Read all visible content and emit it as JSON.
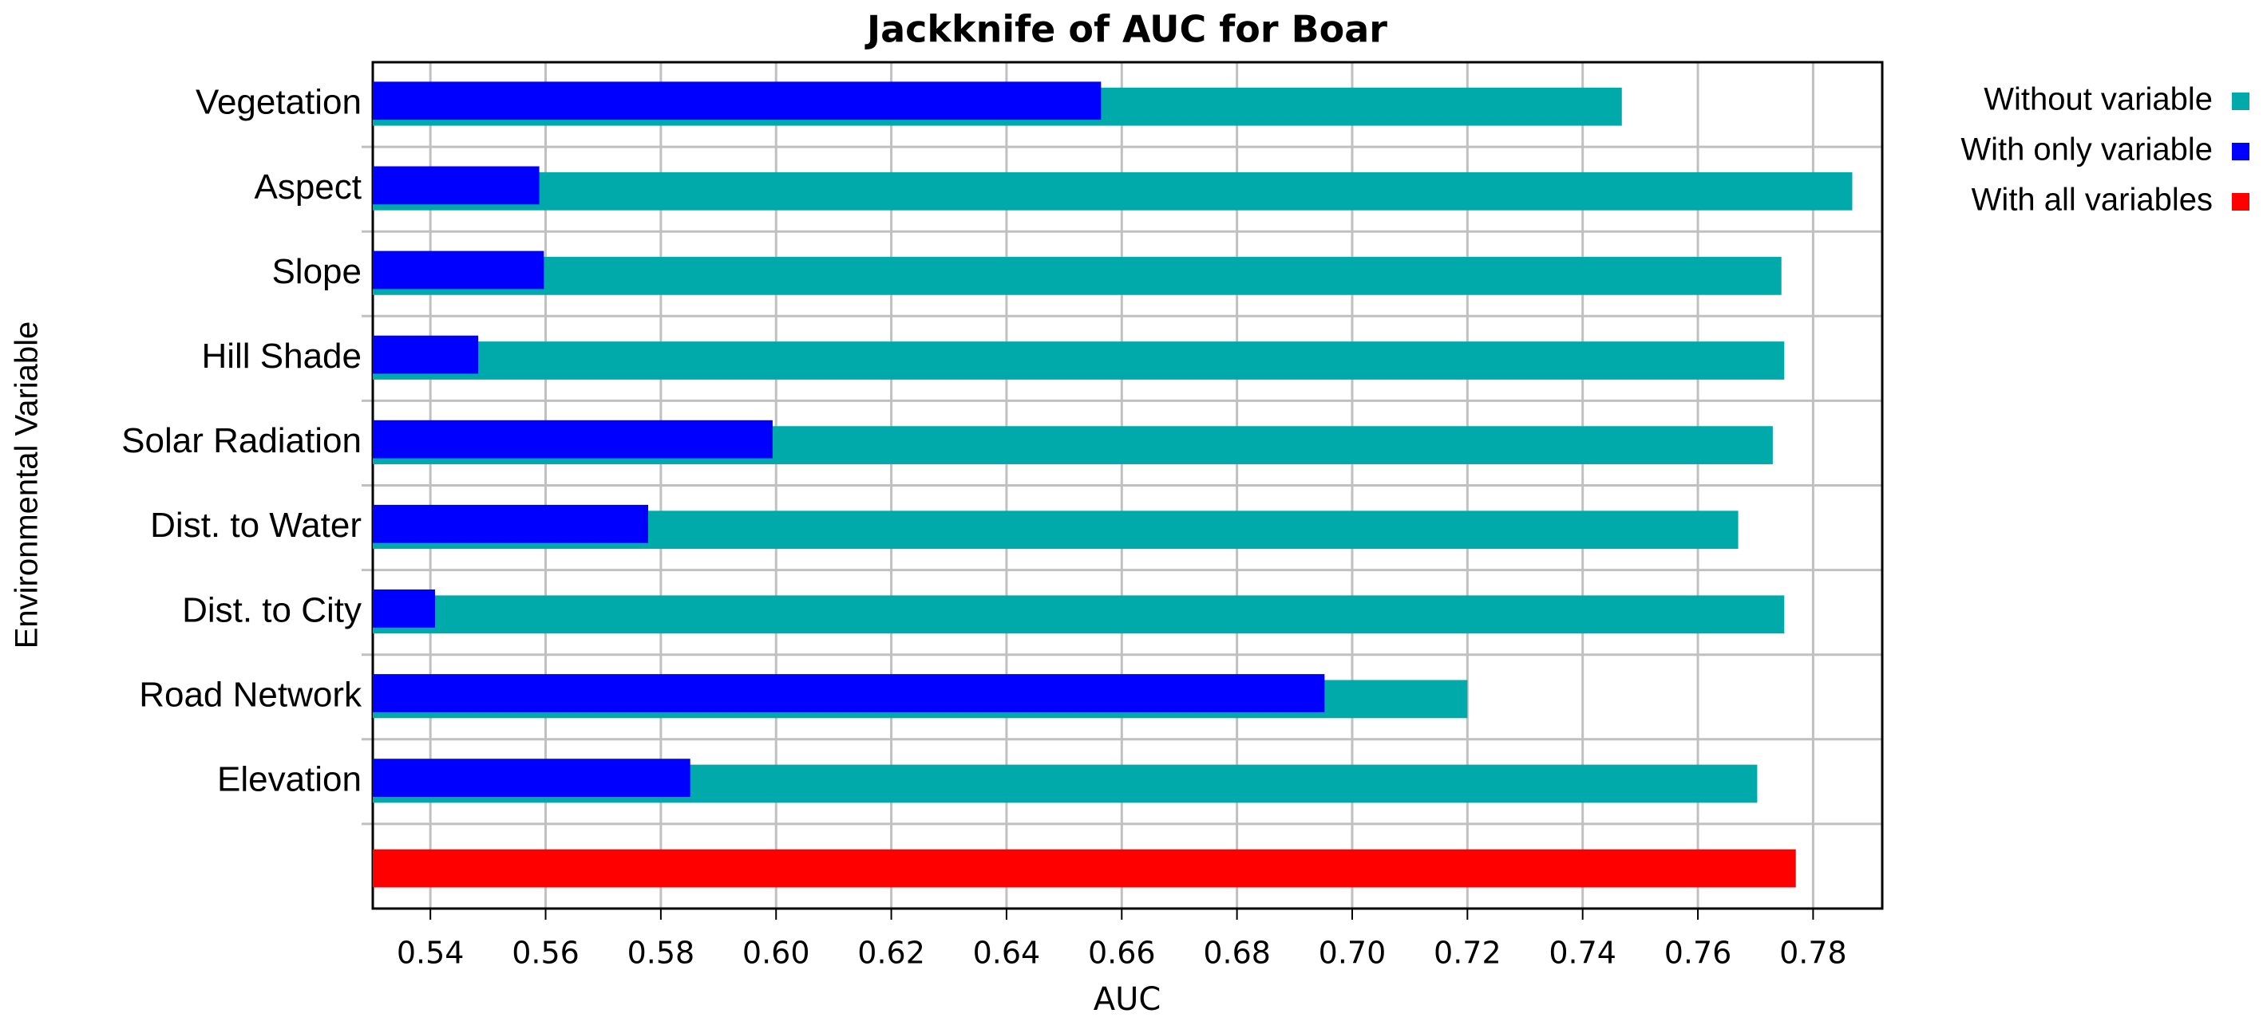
{
  "chart_data": {
    "type": "bar",
    "orientation": "horizontal",
    "title": "Jackknife of AUC for Boar",
    "xlabel": "AUC",
    "ylabel": "Environmental Variable",
    "categories": [
      "Vegetation",
      "Aspect",
      "Slope",
      "Hill Shade",
      "Solar Radiation",
      "Dist. to Water",
      "Dist. to City",
      "Road Network",
      "Elevation",
      null
    ],
    "series": [
      {
        "name": "Without variable",
        "color": "#00aaaa",
        "values": [
          0.7468,
          0.7868,
          0.7745,
          0.775,
          0.773,
          0.767,
          0.775,
          0.72,
          0.7703,
          null
        ]
      },
      {
        "name": "With only variable",
        "color": "#0000ff",
        "values": [
          0.6564,
          0.5589,
          0.5597,
          0.5483,
          0.5994,
          0.5778,
          0.5408,
          0.6952,
          0.5851,
          null
        ]
      },
      {
        "name": "With all variables",
        "color": "#ff0000",
        "values": [
          null,
          null,
          null,
          null,
          null,
          null,
          null,
          null,
          null,
          0.777
        ]
      }
    ],
    "xlim": [
      0.53,
      0.792
    ],
    "xticks": [
      0.54,
      0.56,
      0.58,
      {
        "value": 0.6,
        "label": "0.60"
      },
      0.62,
      0.64,
      0.66,
      0.68,
      {
        "value": 0.7,
        "label": "0.70"
      },
      0.72,
      0.74,
      0.76,
      0.78
    ],
    "grid": true,
    "legend": "outside-right-top"
  }
}
